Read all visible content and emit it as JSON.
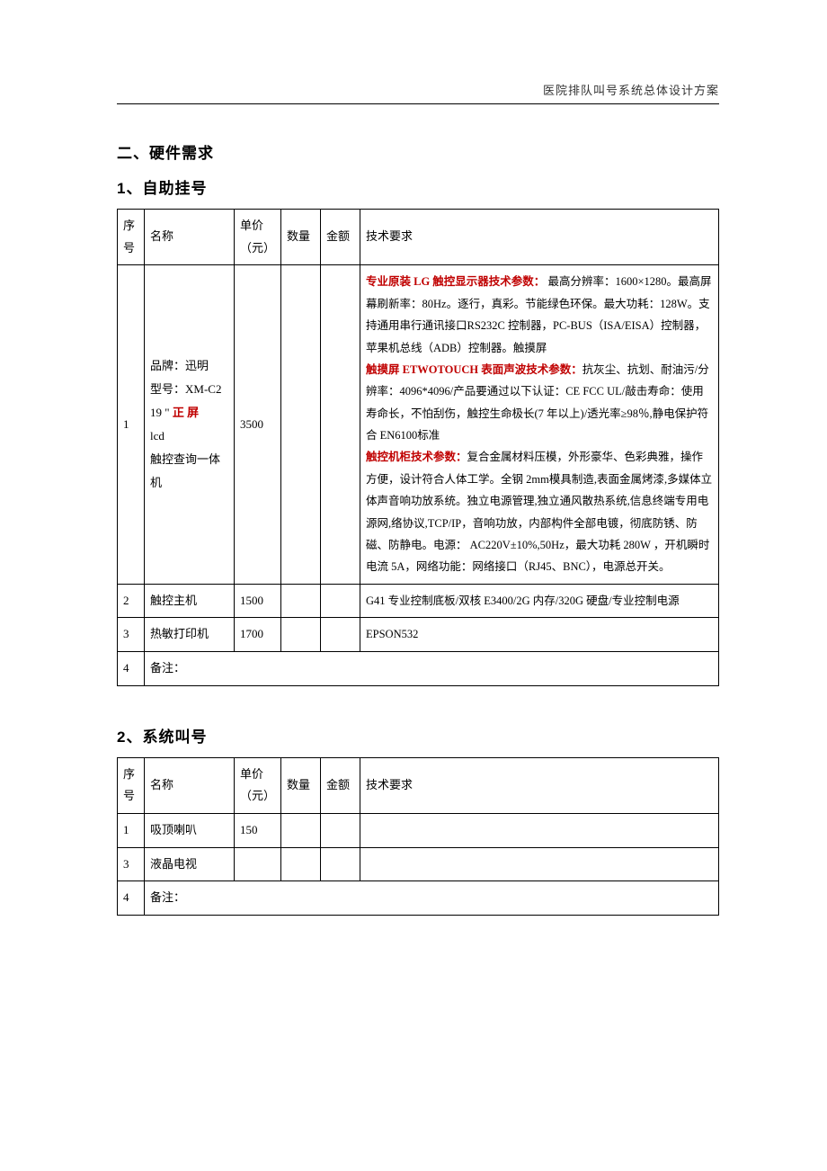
{
  "header": {
    "title": "医院排队叫号系统总体设计方案"
  },
  "section2": {
    "title": "二、硬件需求"
  },
  "sub1": {
    "title": "1、自助挂号",
    "columns": {
      "seq": "序号",
      "name": "名称",
      "price": "单价（元）",
      "qty": "数量",
      "amount": "金额",
      "req": "技术要求"
    },
    "row1": {
      "seq": "1",
      "name_line1": "品牌：迅明",
      "name_line2": "型号：XM-C2",
      "name_line3a": "19 \" ",
      "name_line3b": "正 屏",
      "name_line4": "lcd",
      "name_line5": "触控查询一体机",
      "price": "3500",
      "p1_label": "专业原装 LG 触控显示器技术参数：",
      "p1_body": " 最高分辨率：1600×1280。最高屏幕刷新率：80Hz。逐行，真彩。节能绿色环保。最大功耗：128W。支持通用串行通讯接口RS232C 控制器，PC-BUS（ISA/EISA）控制器，苹果机总线（ADB）控制器。触摸屏",
      "p2_label": "触摸屏 ETWOTOUCH 表面声波技术参数：",
      "p2_body": "抗灰尘、抗划、耐油污/分辨率：4096*4096/产品要通过以下认证：CE FCC UL/敲击寿命：使用寿命长，不怕刮伤，触控生命极长(7 年以上)/透光率≥98％,静电保护符合 EN6100标准",
      "p3_label": "触控机柜技术参数：",
      "p3_body": "复合金属材料压模，外形豪华、色彩典雅，操作方便，设计符合人体工学。全钢 2mm模具制造,表面金属烤漆,多媒体立体声音响功放系统。独立电源管理,独立通风散热系统,信息终端专用电源网,络协议,TCP/IP，音响功放，内部构件全部电镀，彻底防锈、防磁、防静电。电源： AC220V±10%,50Hz，最大功耗 280W ，开机瞬时电流 5A，网络功能：网络接口（RJ45、BNC），电源总开关。"
    },
    "row2": {
      "seq": "2",
      "name": "触控主机",
      "price": "1500",
      "req": "G41 专业控制底板/双核 E3400/2G 内存/320G 硬盘/专业控制电源"
    },
    "row3": {
      "seq": "3",
      "name": "热敏打印机",
      "price": "1700",
      "req": "EPSON532"
    },
    "row4": {
      "seq": "4",
      "name": "备注："
    }
  },
  "sub2": {
    "title": "2、系统叫号",
    "columns": {
      "seq": "序号",
      "name": "名称",
      "price": "单价（元）",
      "qty": "数量",
      "amount": "金额",
      "req": "技术要求"
    },
    "row1": {
      "seq": "1",
      "name": "吸顶喇叭",
      "price": "150"
    },
    "row2": {
      "seq": "3",
      "name": "液晶电视"
    },
    "row3": {
      "seq": "4",
      "name": "备注："
    }
  },
  "colors": {
    "text": "#000000",
    "highlight": "#c00000",
    "border": "#000000",
    "background": "#ffffff"
  }
}
